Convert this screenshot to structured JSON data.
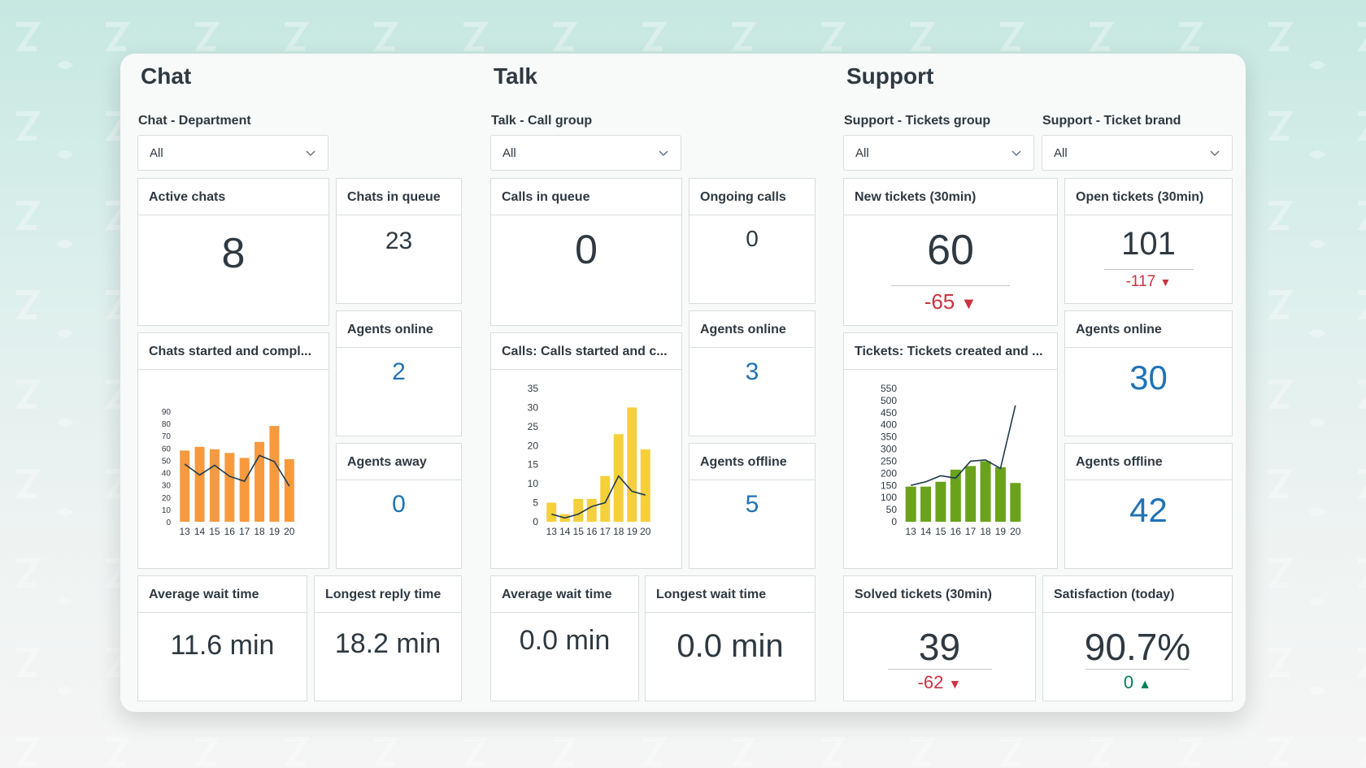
{
  "chat": {
    "heading": "Chat",
    "filter_label": "Chat - Department",
    "filter_value": "All",
    "active_chats": {
      "title": "Active chats",
      "value": "8"
    },
    "chats_in_queue": {
      "title": "Chats in queue",
      "value": "23"
    },
    "agents_online": {
      "title": "Agents online",
      "value": "2"
    },
    "agents_away": {
      "title": "Agents away",
      "value": "0"
    },
    "chart": {
      "title": "Chats started and compl..."
    },
    "avg_wait": {
      "title": "Average wait time",
      "value": "11.6 min"
    },
    "longest_reply": {
      "title": "Longest reply time",
      "value": "18.2 min"
    }
  },
  "talk": {
    "heading": "Talk",
    "filter_label": "Talk - Call group",
    "filter_value": "All",
    "calls_in_queue": {
      "title": "Calls in queue",
      "value": "0"
    },
    "ongoing_calls": {
      "title": "Ongoing calls",
      "value": "0"
    },
    "agents_online": {
      "title": "Agents online",
      "value": "3"
    },
    "agents_offline": {
      "title": "Agents offline",
      "value": "5"
    },
    "chart": {
      "title": "Calls: Calls started and c..."
    },
    "avg_wait": {
      "title": "Average wait time",
      "value": "0.0 min"
    },
    "longest_wait": {
      "title": "Longest wait time",
      "value": "0.0 min"
    }
  },
  "support": {
    "heading": "Support",
    "group_label": "Support - Tickets group",
    "group_value": "All",
    "brand_label": "Support - Ticket brand",
    "brand_value": "All",
    "new_tickets": {
      "title": "New tickets (30min)",
      "value": "60",
      "delta": "-65"
    },
    "open_tickets": {
      "title": "Open tickets (30min)",
      "value": "101",
      "delta": "-117"
    },
    "agents_online": {
      "title": "Agents online",
      "value": "30"
    },
    "agents_offline": {
      "title": "Agents offline",
      "value": "42"
    },
    "chart": {
      "title": "Tickets: Tickets created and ..."
    },
    "solved": {
      "title": "Solved tickets (30min)",
      "value": "39",
      "delta": "-62"
    },
    "satisfaction": {
      "title": "Satisfaction (today)",
      "value": "90.7%",
      "delta": "0"
    }
  },
  "colors": {
    "chat_bar": "#f79a3e",
    "talk_bar": "#f5d03a",
    "support_bar": "#6aa31b",
    "line": "#1f3b50",
    "down": "#cc3340",
    "up": "#038153"
  },
  "chart_data": [
    {
      "type": "bar",
      "title": "",
      "categories": [
        "13",
        "14",
        "15",
        "16",
        "17",
        "18",
        "19",
        "20"
      ],
      "ylim": [
        0,
        90
      ],
      "yticks": [
        0,
        10,
        20,
        30,
        40,
        50,
        60,
        70,
        80,
        90
      ],
      "series": [
        {
          "kind": "bar",
          "values": [
            58,
            61,
            59,
            56,
            52,
            65,
            78,
            51
          ]
        },
        {
          "kind": "line",
          "values": [
            47,
            38,
            46,
            37,
            33,
            54,
            49,
            29
          ]
        }
      ]
    },
    {
      "type": "bar",
      "title": "",
      "categories": [
        "13",
        "14",
        "15",
        "16",
        "17",
        "18",
        "19",
        "20"
      ],
      "ylim": [
        0,
        35
      ],
      "yticks": [
        0,
        5,
        10,
        15,
        20,
        25,
        30,
        35
      ],
      "series": [
        {
          "kind": "bar",
          "values": [
            5,
            2,
            6,
            6,
            12,
            23,
            30,
            19
          ]
        },
        {
          "kind": "line",
          "values": [
            2,
            1,
            2,
            4,
            5,
            12,
            8,
            7
          ]
        }
      ]
    },
    {
      "type": "bar",
      "title": "",
      "categories": [
        "13",
        "14",
        "15",
        "16",
        "17",
        "18",
        "19",
        "20"
      ],
      "ylim": [
        0,
        550
      ],
      "yticks": [
        0,
        50,
        100,
        150,
        200,
        250,
        300,
        350,
        400,
        450,
        500,
        550
      ],
      "series": [
        {
          "kind": "bar",
          "values": [
            145,
            145,
            165,
            215,
            230,
            250,
            225,
            160
          ]
        },
        {
          "kind": "line",
          "values": [
            150,
            165,
            190,
            180,
            250,
            255,
            220,
            480
          ]
        }
      ]
    }
  ]
}
